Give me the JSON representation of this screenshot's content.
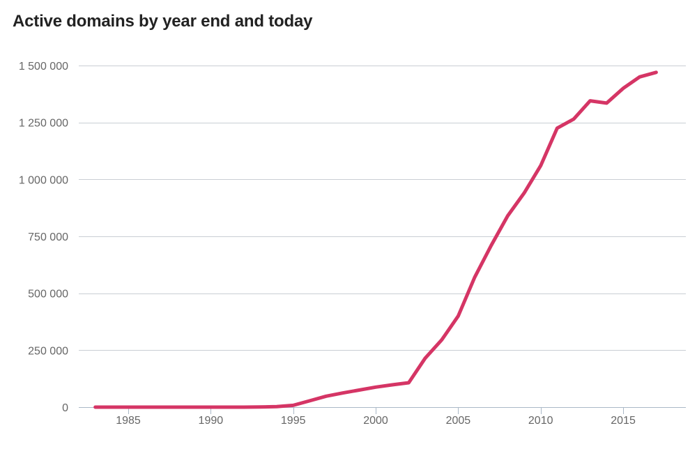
{
  "chart_data": {
    "type": "line",
    "title": "Active domains by year end and today",
    "xlabel": "",
    "ylabel": "",
    "xlim": [
      1982,
      2018.8
    ],
    "ylim": [
      0,
      1500000
    ],
    "grid": true,
    "legend": "none",
    "y_ticks": [
      0,
      250000,
      500000,
      750000,
      1000000,
      1250000,
      1500000
    ],
    "y_tick_labels": [
      "0",
      "250 000",
      "500 000",
      "750 000",
      "1 000 000",
      "1 250 000",
      "1 500 000"
    ],
    "x_ticks": [
      1985,
      1990,
      1995,
      2000,
      2005,
      2010,
      2015
    ],
    "x_tick_labels": [
      "1985",
      "1990",
      "1995",
      "2000",
      "2005",
      "2010",
      "2015"
    ],
    "series": [
      {
        "color": "#d53565",
        "x": [
          1983,
          1984,
          1985,
          1986,
          1987,
          1988,
          1989,
          1990,
          1991,
          1992,
          1993,
          1994,
          1995,
          1996,
          1997,
          1998,
          1999,
          2000,
          2001,
          2002,
          2003,
          2004,
          2005,
          2006,
          2007,
          2008,
          2009,
          2010,
          2011,
          2012,
          2013,
          2014,
          2015,
          2016,
          2017
        ],
        "values": [
          0,
          0,
          0,
          0,
          0,
          0,
          0,
          0,
          0,
          0,
          500,
          2000,
          8000,
          28000,
          48000,
          62000,
          75000,
          88000,
          98000,
          107000,
          215000,
          295000,
          400000,
          570000,
          710000,
          840000,
          940000,
          1060000,
          1225000,
          1265000,
          1345000,
          1335000,
          1400000,
          1450000,
          1470000
        ]
      }
    ]
  }
}
